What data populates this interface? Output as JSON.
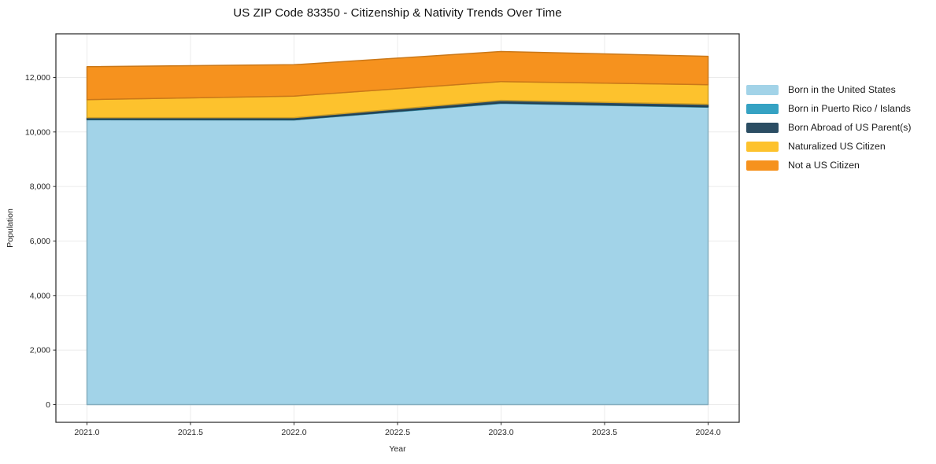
{
  "title": "US ZIP Code 83350 - Citizenship & Nativity Trends Over Time",
  "chart_data": {
    "type": "area",
    "stacked": true,
    "title": "US ZIP Code 83350 - Citizenship & Nativity Trends Over Time",
    "xlabel": "Year",
    "ylabel": "Population",
    "x": [
      2021,
      2022,
      2023,
      2024
    ],
    "series": [
      {
        "name": "Born in the United States",
        "color": "#A2D3E8",
        "values": [
          10450,
          10440,
          11050,
          10910
        ]
      },
      {
        "name": "Born in Puerto Rico / Islands",
        "color": "#35A2C3",
        "values": [
          15,
          15,
          20,
          15
        ]
      },
      {
        "name": "Born Abroad of US Parent(s)",
        "color": "#2B4D63",
        "values": [
          60,
          70,
          90,
          90
        ]
      },
      {
        "name": "Naturalized US Citizen",
        "color": "#FDC22D",
        "values": [
          660,
          790,
          690,
          720
        ]
      },
      {
        "name": "Not a US Citizen",
        "color": "#F6921E",
        "values": [
          1210,
          1150,
          1100,
          1040
        ]
      }
    ],
    "xlim": [
      2020.85,
      2024.15
    ],
    "ylim": [
      -650,
      13600
    ],
    "xticks": [
      2021.0,
      2021.5,
      2022.0,
      2022.5,
      2023.0,
      2023.5,
      2024.0
    ],
    "yticks": [
      0,
      2000,
      4000,
      6000,
      8000,
      10000,
      12000
    ],
    "grid": true,
    "grid_color": "#ebebeb",
    "spine_color": "#262626",
    "legend_position": "outside-right"
  }
}
